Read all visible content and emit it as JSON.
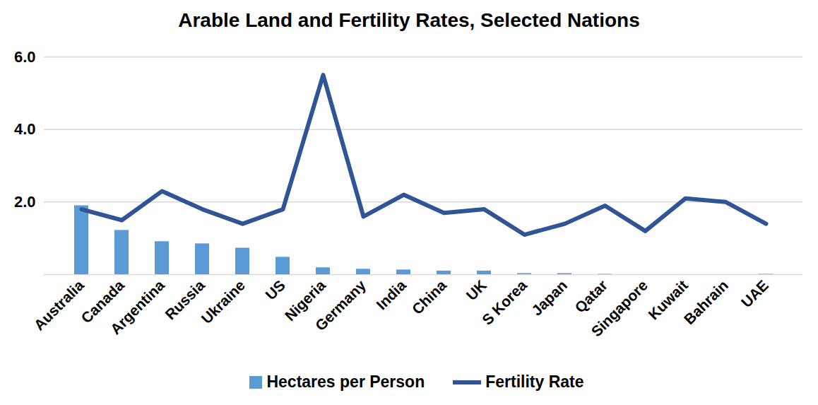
{
  "chart_data": {
    "type": "bar",
    "title": "Arable Land and Fertility Rates, Selected Nations",
    "categories": [
      "Australia",
      "Canada",
      "Argentina",
      "Russia",
      "Ukraine",
      "US",
      "Nigeria",
      "Germany",
      "India",
      "China",
      "UK",
      "S Korea",
      "Japan",
      "Qatar",
      "Singapore",
      "Kuwait",
      "Bahrain",
      "UAE"
    ],
    "series": [
      {
        "name": "Hectares per Person",
        "type": "bar",
        "color": "#5b9bd5",
        "values": [
          1.9,
          1.22,
          0.91,
          0.85,
          0.73,
          0.48,
          0.19,
          0.15,
          0.13,
          0.1,
          0.1,
          0.03,
          0.03,
          0.01,
          0,
          0,
          0,
          0.01
        ]
      },
      {
        "name": "Fertility Rate",
        "type": "line",
        "color": "#2f5597",
        "values": [
          1.8,
          1.5,
          2.3,
          1.8,
          1.4,
          1.8,
          5.5,
          1.6,
          2.2,
          1.7,
          1.8,
          1.1,
          1.4,
          1.9,
          1.2,
          2.1,
          2.0,
          1.4
        ]
      }
    ],
    "ylim": [
      0,
      6
    ],
    "yticks": [
      2,
      4,
      6
    ],
    "grid": true,
    "legend": "bottom"
  }
}
